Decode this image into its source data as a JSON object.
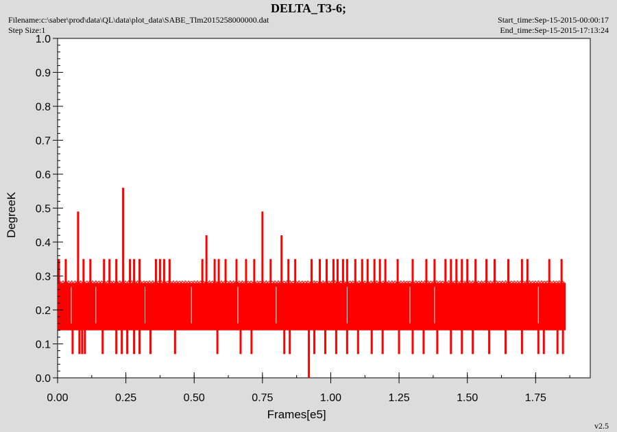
{
  "header": {
    "title": "DELTA_T3-6;",
    "filename": "Filename:c:\\saber\\prod\\data\\QL\\data\\plot_data\\SABE_Tlm2015258000000.dat",
    "step_size": "Step Size:1",
    "start_time": "Start_time:Sep-15-2015-00:00:17",
    "end_time": "End_time:Sep-15-2015-17:13:24",
    "version": "v2.5"
  },
  "colors": {
    "series": "#ff0000",
    "plot_background": "#ffffff",
    "figure_background": "#dcdcdc"
  },
  "chart_data": {
    "type": "line",
    "title": "DELTA_T3-6;",
    "xlabel": "Frames[e5]",
    "ylabel": "DegreeK",
    "xlim": [
      0,
      1.95
    ],
    "ylim": [
      0,
      1.0
    ],
    "x_ticks": [
      "0.00",
      "0.25",
      "0.50",
      "0.75",
      "1.00",
      "1.25",
      "1.50",
      "1.75"
    ],
    "y_ticks": [
      "0.0",
      "0.1",
      "0.2",
      "0.3",
      "0.4",
      "0.5",
      "0.6",
      "0.7",
      "0.8",
      "0.9",
      "1.0"
    ],
    "grid": false,
    "band": {
      "x_start": 0.0,
      "x_end": 1.86,
      "low": 0.14,
      "high": 0.28
    },
    "spikes_high": [
      [
        0.005,
        0.35
      ],
      [
        0.03,
        0.35
      ],
      [
        0.075,
        0.49
      ],
      [
        0.095,
        0.35
      ],
      [
        0.12,
        0.35
      ],
      [
        0.17,
        0.35
      ],
      [
        0.19,
        0.35
      ],
      [
        0.215,
        0.35
      ],
      [
        0.24,
        0.56
      ],
      [
        0.265,
        0.35
      ],
      [
        0.28,
        0.35
      ],
      [
        0.3,
        0.35
      ],
      [
        0.36,
        0.35
      ],
      [
        0.375,
        0.35
      ],
      [
        0.39,
        0.35
      ],
      [
        0.41,
        0.35
      ],
      [
        0.53,
        0.35
      ],
      [
        0.545,
        0.42
      ],
      [
        0.575,
        0.35
      ],
      [
        0.59,
        0.35
      ],
      [
        0.615,
        0.35
      ],
      [
        0.655,
        0.35
      ],
      [
        0.69,
        0.35
      ],
      [
        0.72,
        0.35
      ],
      [
        0.75,
        0.49
      ],
      [
        0.78,
        0.35
      ],
      [
        0.82,
        0.42
      ],
      [
        0.845,
        0.35
      ],
      [
        0.87,
        0.35
      ],
      [
        0.93,
        0.35
      ],
      [
        0.96,
        0.35
      ],
      [
        0.985,
        0.35
      ],
      [
        1.01,
        0.35
      ],
      [
        1.025,
        0.35
      ],
      [
        1.045,
        0.35
      ],
      [
        1.06,
        0.35
      ],
      [
        1.09,
        0.35
      ],
      [
        1.115,
        0.35
      ],
      [
        1.135,
        0.35
      ],
      [
        1.16,
        0.35
      ],
      [
        1.18,
        0.35
      ],
      [
        1.2,
        0.35
      ],
      [
        1.245,
        0.35
      ],
      [
        1.3,
        0.35
      ],
      [
        1.35,
        0.35
      ],
      [
        1.38,
        0.35
      ],
      [
        1.42,
        0.35
      ],
      [
        1.44,
        0.35
      ],
      [
        1.46,
        0.35
      ],
      [
        1.48,
        0.35
      ],
      [
        1.5,
        0.35
      ],
      [
        1.53,
        0.35
      ],
      [
        1.57,
        0.35
      ],
      [
        1.6,
        0.35
      ],
      [
        1.65,
        0.35
      ],
      [
        1.7,
        0.35
      ],
      [
        1.72,
        0.35
      ],
      [
        1.8,
        0.35
      ],
      [
        1.845,
        0.35
      ]
    ],
    "spikes_low": [
      [
        0.055,
        0.07
      ],
      [
        0.08,
        0.07
      ],
      [
        0.09,
        0.07
      ],
      [
        0.1,
        0.07
      ],
      [
        0.165,
        0.07
      ],
      [
        0.215,
        0.07
      ],
      [
        0.235,
        0.07
      ],
      [
        0.255,
        0.07
      ],
      [
        0.28,
        0.07
      ],
      [
        0.3,
        0.07
      ],
      [
        0.34,
        0.07
      ],
      [
        0.43,
        0.07
      ],
      [
        0.585,
        0.07
      ],
      [
        0.67,
        0.07
      ],
      [
        0.71,
        0.07
      ],
      [
        0.83,
        0.07
      ],
      [
        0.85,
        0.07
      ],
      [
        0.92,
        0.0
      ],
      [
        0.94,
        0.07
      ],
      [
        0.98,
        0.07
      ],
      [
        1.02,
        0.07
      ],
      [
        1.06,
        0.07
      ],
      [
        1.1,
        0.07
      ],
      [
        1.15,
        0.07
      ],
      [
        1.19,
        0.07
      ],
      [
        1.25,
        0.07
      ],
      [
        1.3,
        0.07
      ],
      [
        1.34,
        0.07
      ],
      [
        1.39,
        0.07
      ],
      [
        1.44,
        0.07
      ],
      [
        1.48,
        0.07
      ],
      [
        1.52,
        0.07
      ],
      [
        1.58,
        0.07
      ],
      [
        1.64,
        0.07
      ],
      [
        1.7,
        0.07
      ],
      [
        1.76,
        0.07
      ],
      [
        1.78,
        0.07
      ],
      [
        1.83,
        0.07
      ],
      [
        1.85,
        0.07
      ]
    ]
  }
}
